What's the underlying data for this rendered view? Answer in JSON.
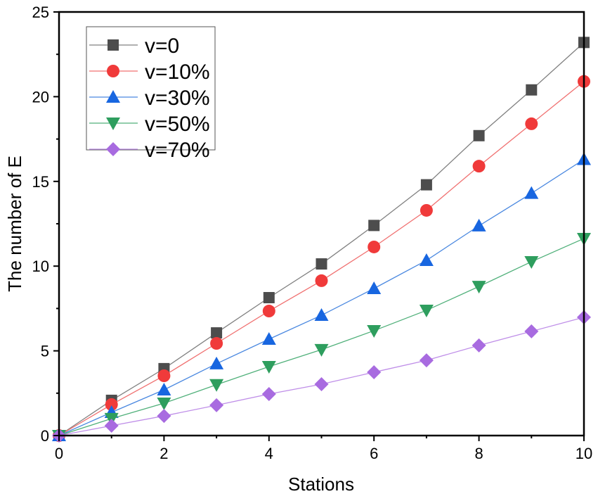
{
  "chart_data": {
    "type": "line",
    "title": "",
    "xlabel": "Stations",
    "ylabel": "The number of E",
    "xlim": [
      0,
      10
    ],
    "ylim": [
      0,
      25
    ],
    "xticks": [
      "0",
      "2",
      "4",
      "6",
      "8",
      "10"
    ],
    "yticks": [
      "0",
      "5",
      "10",
      "15",
      "20",
      "25"
    ],
    "grid": false,
    "legend_position": "top-left",
    "x": [
      0,
      1,
      2,
      3,
      4,
      5,
      6,
      7,
      8,
      9,
      10
    ],
    "series": [
      {
        "name": "v=0",
        "color": "#4d4d4d",
        "line": "#808080",
        "marker": "square",
        "values": [
          0,
          2.08,
          3.95,
          6.06,
          8.14,
          10.13,
          12.4,
          14.8,
          17.7,
          20.4,
          23.2
        ]
      },
      {
        "name": "v=10%",
        "color": "#f03a3a",
        "line": "#f07070",
        "marker": "circle",
        "values": [
          0,
          1.83,
          3.53,
          5.44,
          7.35,
          9.14,
          11.13,
          13.29,
          15.9,
          18.4,
          20.9
        ]
      },
      {
        "name": "v=30%",
        "color": "#1866e0",
        "line": "#4a88e0",
        "marker": "triangle-up",
        "values": [
          0,
          1.37,
          2.7,
          4.24,
          5.69,
          7.1,
          8.68,
          10.34,
          12.38,
          14.3,
          16.3
        ]
      },
      {
        "name": "v=50%",
        "color": "#2e9e5e",
        "line": "#50b07a",
        "marker": "triangle-down",
        "values": [
          0,
          1.0,
          1.91,
          3.0,
          4.07,
          5.07,
          6.19,
          7.39,
          8.8,
          10.26,
          11.63
        ]
      },
      {
        "name": "v=70%",
        "color": "#a86be0",
        "line": "#bf8ee8",
        "marker": "diamond",
        "values": [
          0,
          0.58,
          1.16,
          1.79,
          2.45,
          3.03,
          3.74,
          4.44,
          5.32,
          6.15,
          6.98
        ]
      }
    ]
  }
}
